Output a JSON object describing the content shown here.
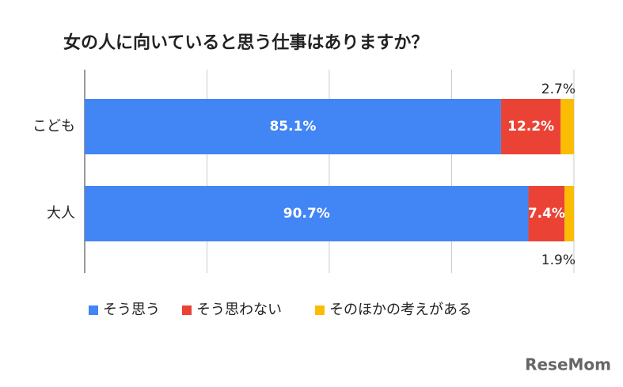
{
  "chart_data": {
    "type": "stacked-barh",
    "title": "女の人に向いていると思う仕事はありますか？",
    "categories": [
      "こども",
      "大人"
    ],
    "series": [
      {
        "name": "そう思う",
        "color": "#4285f4",
        "values": [
          85.1,
          90.7
        ],
        "value_labels": [
          "85.1%",
          "90.7%"
        ]
      },
      {
        "name": "そう思わない",
        "color": "#ea4335",
        "values": [
          12.2,
          7.4
        ],
        "value_labels": [
          "12.2%",
          "7.4%"
        ]
      },
      {
        "name": "そのほかの考えがある",
        "color": "#fbbc04",
        "values": [
          2.7,
          1.9
        ],
        "value_labels": [
          "2.7%",
          "1.9%"
        ]
      }
    ],
    "xlim": [
      0,
      100
    ],
    "xticks": [
      0,
      25,
      50,
      75,
      100
    ],
    "grid": true,
    "legend": "bottom",
    "watermark": "ReseMom"
  }
}
